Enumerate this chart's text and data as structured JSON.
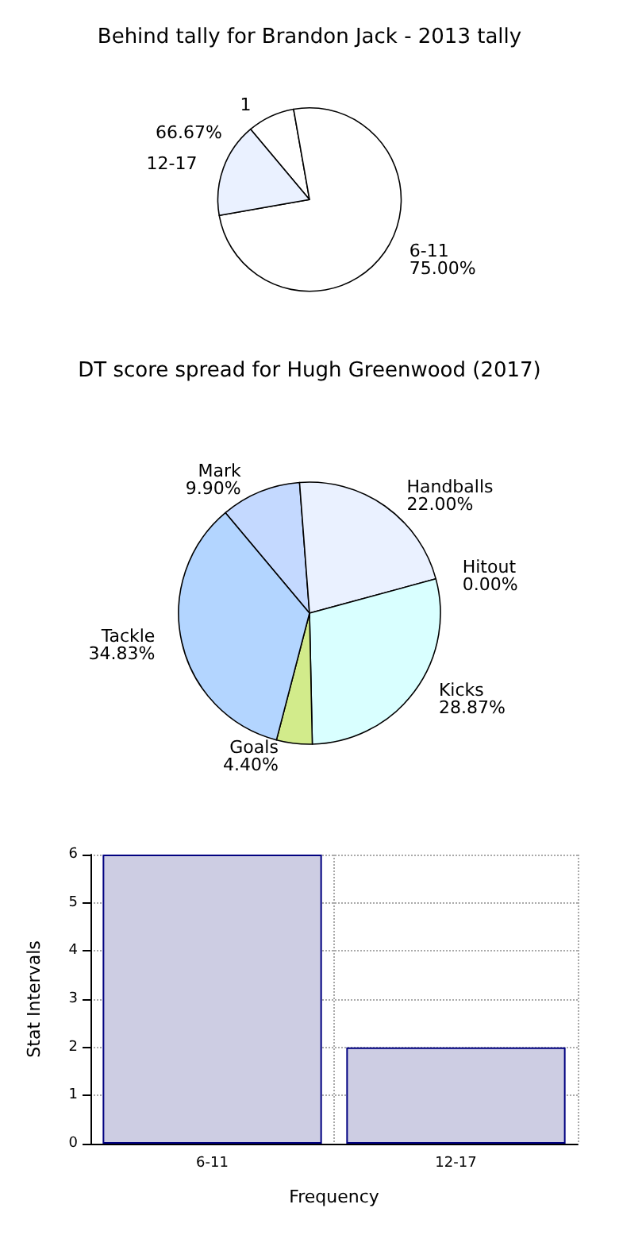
{
  "chart_data": [
    {
      "type": "pie",
      "title": "Behind tally for Brandon Jack - 2013 tally",
      "categories": [
        "1",
        "6-11",
        "12-17"
      ],
      "values": [
        8.33,
        75.0,
        16.67
      ],
      "colors": [
        "#ffffff",
        "#ffffff",
        "#eaf1ff"
      ],
      "value_labels": [
        null,
        "75.00%",
        null
      ],
      "annotations": [
        "66.67%"
      ]
    },
    {
      "type": "pie",
      "title": "DT score spread for Hugh Greenwood (2017)",
      "categories": [
        "Mark",
        "Handballs",
        "Hitout",
        "Kicks",
        "Goals",
        "Tackle"
      ],
      "values": [
        9.9,
        22.0,
        0.0,
        28.87,
        4.4,
        34.83
      ],
      "colors": [
        "#c4d9ff",
        "#eaf1ff",
        "#e0e0ff",
        "#d9ffff",
        "#d2eb8b",
        "#b3d5ff"
      ],
      "value_labels": [
        "9.90%",
        "22.00%",
        "0.00%",
        "28.87%",
        "4.40%",
        "34.83%"
      ]
    },
    {
      "type": "bar",
      "categories": [
        "6-11",
        "12-17"
      ],
      "values": [
        6,
        2
      ],
      "color": "#cdcde3",
      "xlabel": "Frequency",
      "ylabel": "Stat Intervals",
      "ylim": [
        0,
        6
      ],
      "yticks": [
        0,
        1,
        2,
        3,
        4,
        5,
        6
      ],
      "grid": true
    }
  ]
}
